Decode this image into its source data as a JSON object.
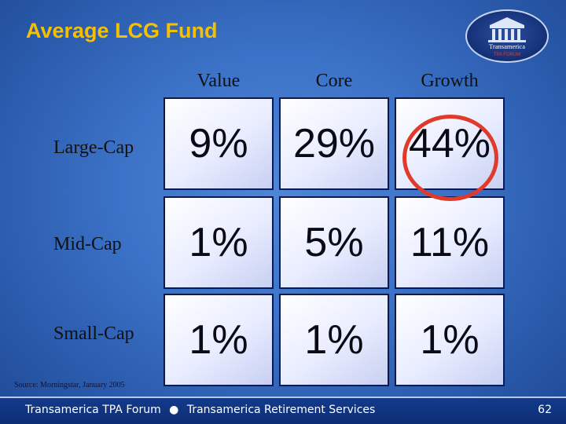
{
  "slide": {
    "title": "Average LCG Fund",
    "columns": [
      "Value",
      "Core",
      "Growth"
    ],
    "rows": [
      {
        "label": "Large-Cap",
        "cells": [
          "9%",
          "29%",
          "44%"
        ]
      },
      {
        "label": "Mid-Cap",
        "cells": [
          "1%",
          "5%",
          "11%"
        ]
      },
      {
        "label": "Small-Cap",
        "cells": [
          "1%",
          "1%",
          "1%"
        ]
      }
    ],
    "highlighted_cell": "44%",
    "source": "Source: Morningstar, January 2005"
  },
  "logo": {
    "name": "Transamerica",
    "subtitle": "TPA FORUM",
    "icon": "building-icon"
  },
  "footer": {
    "left_text": "Transamerica TPA Forum",
    "separator": "●",
    "right_text": "Transamerica Retirement Services",
    "page_number": "62"
  },
  "colors": {
    "title": "#f5c000",
    "highlight_circle": "#e03a2a",
    "cell_border": "#0b1a52",
    "footer_bg": "#0d2e75"
  }
}
